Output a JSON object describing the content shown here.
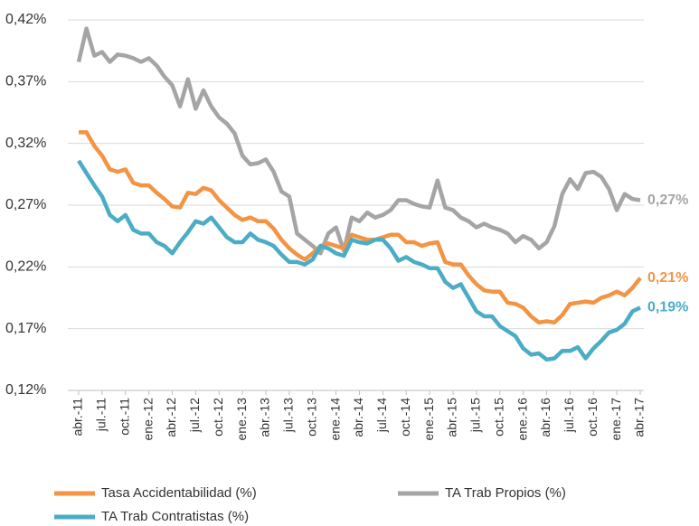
{
  "chart_data": {
    "type": "line",
    "categories": [
      "abr.-11",
      null,
      null,
      "jul.-11",
      null,
      null,
      "oct.-11",
      null,
      null,
      "ene.-12",
      null,
      null,
      "abr.-12",
      null,
      null,
      "jul.-12",
      null,
      null,
      "oct.-12",
      null,
      null,
      "ene.-13",
      null,
      null,
      "abr.-13",
      null,
      null,
      "jul.-13",
      null,
      null,
      "oct.-13",
      null,
      null,
      "ene.-14",
      null,
      null,
      "abr.-14",
      null,
      null,
      "jul.-14",
      null,
      null,
      "oct.-14",
      null,
      null,
      "ene.-15",
      null,
      null,
      "abr.-15",
      null,
      null,
      "jul.-15",
      null,
      null,
      "oct.-15",
      null,
      null,
      "ene.-16",
      null,
      null,
      "abr.-16",
      null,
      null,
      "jul.-16",
      null,
      null,
      "oct.-16",
      null,
      null,
      "ene.-17",
      null,
      null,
      "abr.-17"
    ],
    "series": [
      {
        "name": "Tasa Accidentabilidad (%)",
        "color": "#f39445",
        "values": [
          0.329,
          0.329,
          0.318,
          0.31,
          0.299,
          0.297,
          0.299,
          0.288,
          0.286,
          0.286,
          0.28,
          0.275,
          0.269,
          0.268,
          0.28,
          0.279,
          0.284,
          0.282,
          0.274,
          0.268,
          0.262,
          0.258,
          0.26,
          0.257,
          0.257,
          0.251,
          0.242,
          0.235,
          0.23,
          0.226,
          0.231,
          0.237,
          0.239,
          0.237,
          0.235,
          0.246,
          0.244,
          0.242,
          0.242,
          0.244,
          0.246,
          0.246,
          0.24,
          0.24,
          0.237,
          0.239,
          0.24,
          0.224,
          0.222,
          0.222,
          0.213,
          0.206,
          0.201,
          0.2,
          0.2,
          0.191,
          0.19,
          0.187,
          0.18,
          0.175,
          0.176,
          0.175,
          0.181,
          0.19,
          0.191,
          0.192,
          0.191,
          0.195,
          0.197,
          0.2,
          0.197,
          0.203,
          0.211
        ],
        "value_labels": [
          null,
          null,
          null,
          null,
          null,
          null,
          null,
          null,
          null,
          null,
          null,
          null,
          null,
          null,
          null,
          null,
          null,
          null,
          null,
          null,
          null,
          null,
          null,
          null,
          null,
          null,
          null,
          null,
          null,
          null,
          null,
          null,
          null,
          null,
          null,
          null,
          null,
          null,
          null,
          null,
          null,
          null,
          null,
          null,
          null,
          null,
          null,
          null,
          null,
          null,
          null,
          null,
          null,
          null,
          null,
          null,
          null,
          null,
          null,
          null,
          null,
          null,
          null,
          null,
          null,
          null,
          null,
          null,
          null,
          null,
          null,
          null,
          "0,21%"
        ]
      },
      {
        "name": "TA Trab Propios (%)",
        "color": "#a5a5a5",
        "values": [
          0.386,
          0.413,
          0.391,
          0.394,
          0.386,
          0.392,
          0.391,
          0.389,
          0.386,
          0.389,
          0.383,
          0.374,
          0.367,
          0.35,
          0.372,
          0.348,
          0.363,
          0.35,
          0.341,
          0.336,
          0.328,
          0.31,
          0.303,
          0.304,
          0.307,
          0.297,
          0.281,
          0.277,
          0.247,
          0.242,
          0.237,
          0.231,
          0.247,
          0.252,
          0.233,
          0.26,
          0.257,
          0.264,
          0.26,
          0.262,
          0.266,
          0.274,
          0.274,
          0.271,
          0.269,
          0.268,
          0.29,
          0.268,
          0.266,
          0.26,
          0.257,
          0.252,
          0.255,
          0.252,
          0.25,
          0.247,
          0.24,
          0.245,
          0.242,
          0.235,
          0.24,
          0.253,
          0.279,
          0.291,
          0.283,
          0.296,
          0.297,
          0.293,
          0.283,
          0.266,
          0.279,
          0.275,
          0.274
        ],
        "value_labels": [
          null,
          null,
          null,
          null,
          null,
          null,
          null,
          null,
          null,
          null,
          null,
          null,
          null,
          null,
          null,
          null,
          null,
          null,
          null,
          null,
          null,
          null,
          null,
          null,
          null,
          null,
          null,
          null,
          null,
          null,
          null,
          null,
          null,
          null,
          null,
          null,
          null,
          null,
          null,
          null,
          null,
          null,
          null,
          null,
          null,
          null,
          null,
          null,
          null,
          null,
          null,
          null,
          null,
          null,
          null,
          null,
          null,
          null,
          null,
          null,
          null,
          null,
          null,
          null,
          null,
          null,
          null,
          null,
          null,
          null,
          null,
          null,
          "0,27%"
        ]
      },
      {
        "name": "TA Trab Contratistas (%)",
        "color": "#4bacc6",
        "values": [
          0.306,
          0.296,
          0.286,
          0.277,
          0.262,
          0.257,
          0.262,
          0.25,
          0.247,
          0.247,
          0.24,
          0.237,
          0.231,
          0.24,
          0.248,
          0.257,
          0.255,
          0.26,
          0.252,
          0.244,
          0.24,
          0.24,
          0.247,
          0.242,
          0.24,
          0.237,
          0.23,
          0.224,
          0.224,
          0.222,
          0.226,
          0.237,
          0.235,
          0.231,
          0.229,
          0.242,
          0.24,
          0.239,
          0.242,
          0.242,
          0.235,
          0.225,
          0.228,
          0.224,
          0.222,
          0.219,
          0.219,
          0.208,
          0.203,
          0.206,
          0.195,
          0.184,
          0.18,
          0.18,
          0.172,
          0.168,
          0.164,
          0.154,
          0.149,
          0.15,
          0.145,
          0.146,
          0.152,
          0.152,
          0.155,
          0.146,
          0.154,
          0.16,
          0.167,
          0.169,
          0.174,
          0.184,
          0.187
        ],
        "value_labels": [
          null,
          null,
          null,
          null,
          null,
          null,
          null,
          null,
          null,
          null,
          null,
          null,
          null,
          null,
          null,
          null,
          null,
          null,
          null,
          null,
          null,
          null,
          null,
          null,
          null,
          null,
          null,
          null,
          null,
          null,
          null,
          null,
          null,
          null,
          null,
          null,
          null,
          null,
          null,
          null,
          null,
          null,
          null,
          null,
          null,
          null,
          null,
          null,
          null,
          null,
          null,
          null,
          null,
          null,
          null,
          null,
          null,
          null,
          null,
          null,
          null,
          null,
          null,
          null,
          null,
          null,
          null,
          null,
          null,
          null,
          null,
          null,
          "0,19%"
        ]
      }
    ],
    "ylim": [
      0.12,
      0.42
    ],
    "yticks": [
      {
        "value": 0.12,
        "label": "0,12%"
      },
      {
        "value": 0.17,
        "label": "0,17%"
      },
      {
        "value": 0.22,
        "label": "0,22%"
      },
      {
        "value": 0.27,
        "label": "0,27%"
      },
      {
        "value": 0.32,
        "label": "0,32%"
      },
      {
        "value": 0.37,
        "label": "0,37%"
      },
      {
        "value": 0.42,
        "label": "0,42%"
      }
    ],
    "grid": true
  }
}
